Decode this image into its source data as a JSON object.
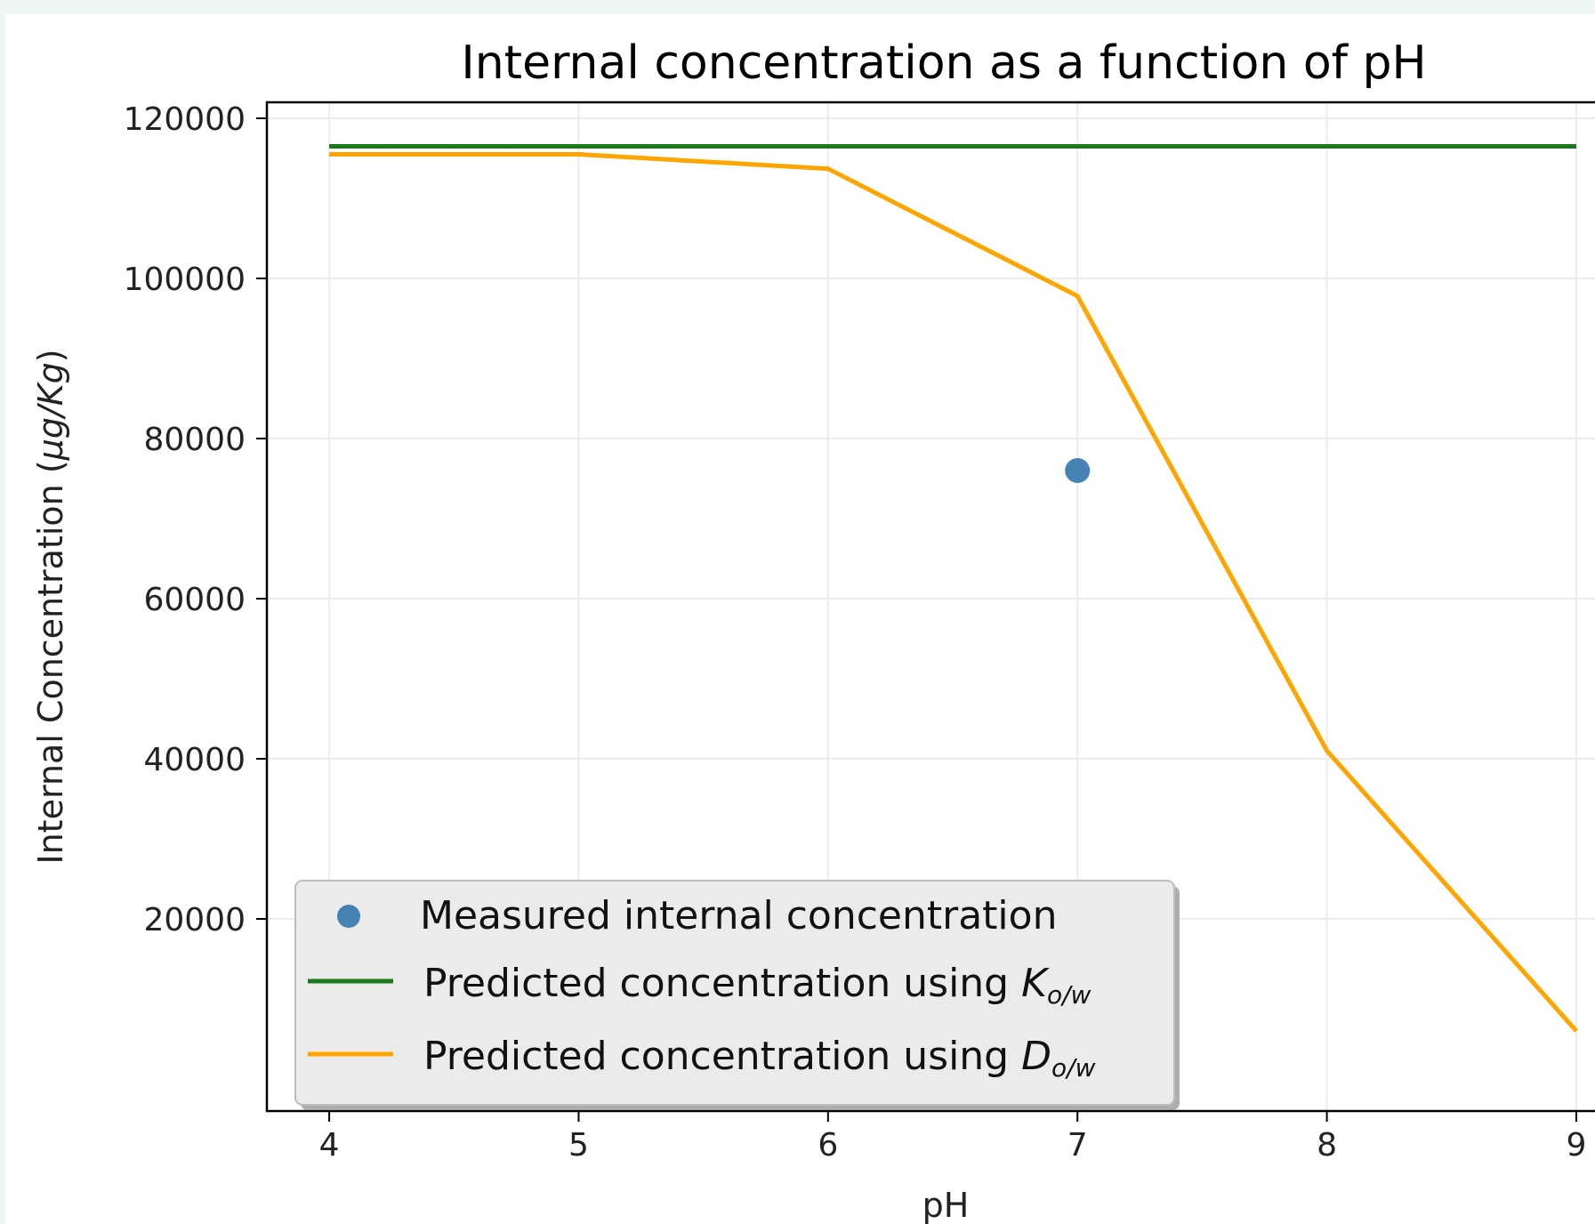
{
  "chart_data": {
    "type": "line",
    "title": "Internal concentration as a function of pH",
    "xlabel": "pH",
    "ylabel": "Internal Concentration (μg/Kg)",
    "ylabel_main": "Internal Concentration (",
    "ylabel_unit": "μg/Kg",
    "ylabel_close": ")",
    "xlim": [
      3.75,
      9.1
    ],
    "ylim": [
      -4000,
      122000
    ],
    "xticks": [
      4,
      5,
      6,
      7,
      8,
      9
    ],
    "xtick_labels": [
      "4",
      "5",
      "6",
      "7",
      "8",
      "9"
    ],
    "yticks": [
      20000,
      40000,
      60000,
      80000,
      100000,
      120000
    ],
    "ytick_labels": [
      "20000",
      "40000",
      "60000",
      "80000",
      "100000",
      "120000"
    ],
    "grid": true,
    "legend_position": "lower-left",
    "series": [
      {
        "name": "Measured internal concentration",
        "kind": "scatter",
        "color": "#4682b4",
        "x": [
          7
        ],
        "y": [
          76000
        ]
      },
      {
        "name": "Predicted concentration using K_o/w",
        "legend_main": "Predicted concentration using ",
        "legend_symbol": "K",
        "legend_sub": "o/w",
        "kind": "line",
        "color": "#1a7a1a",
        "x": [
          4,
          5,
          6,
          7,
          8,
          9
        ],
        "y": [
          116500,
          116500,
          116500,
          116500,
          116500,
          116500
        ]
      },
      {
        "name": "Predicted concentration using D_o/w",
        "legend_main": "Predicted concentration using ",
        "legend_symbol": "D",
        "legend_sub": "o/w",
        "kind": "line",
        "color": "#ffa500",
        "x": [
          4,
          5,
          6,
          7,
          8,
          9
        ],
        "y": [
          115500,
          115500,
          113700,
          97800,
          41000,
          6000
        ]
      }
    ]
  }
}
